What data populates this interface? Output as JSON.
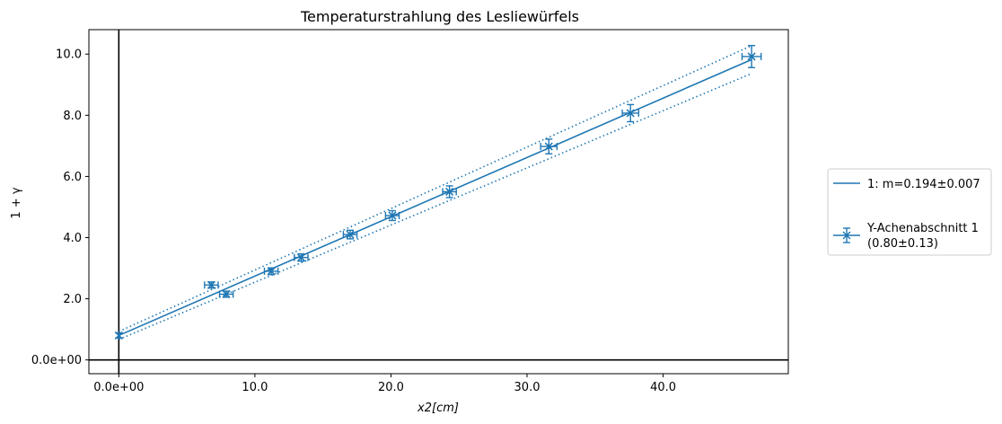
{
  "chart_data": {
    "type": "scatter",
    "title": "Temperaturstrahlung des Lesliewürfels",
    "xlabel_italic": "x2[cm]",
    "ylabel": "1 + γ",
    "xlim": [
      -2.2,
      49.2
    ],
    "ylim": [
      -0.45,
      10.8
    ],
    "xticks": [
      0,
      10,
      20,
      30,
      40
    ],
    "xtick_labels": [
      "0.0e+00",
      "10.0",
      "20.0",
      "30.0",
      "40.0"
    ],
    "yticks": [
      0,
      2,
      4,
      6,
      8,
      10
    ],
    "ytick_labels": [
      "0.0e+00",
      "2.0",
      "4.0",
      "6.0",
      "8.0",
      "10.0"
    ],
    "reference_lines": {
      "x": 0,
      "y": 0
    },
    "legend_placement": "outside-right",
    "color": "#1f77b4",
    "fit": {
      "label": "1: m=0.194±0.007",
      "slope": 0.194,
      "slope_err": 0.007,
      "intercept": 0.8,
      "intercept_err": 0.13,
      "x_range": [
        0,
        46.5
      ]
    },
    "series": [
      {
        "name_line1": "Y-Achenabschnitt 1",
        "name_line2": "(0.80±0.13)",
        "marker": "x",
        "points": [
          {
            "x": 0.0,
            "y": 0.8,
            "xerr": 0.0,
            "yerr": 0.08
          },
          {
            "x": 6.8,
            "y": 2.45,
            "xerr": 0.5,
            "yerr": 0.1
          },
          {
            "x": 7.9,
            "y": 2.15,
            "xerr": 0.5,
            "yerr": 0.1
          },
          {
            "x": 11.2,
            "y": 2.9,
            "xerr": 0.5,
            "yerr": 0.11
          },
          {
            "x": 13.4,
            "y": 3.35,
            "xerr": 0.5,
            "yerr": 0.12
          },
          {
            "x": 17.0,
            "y": 4.1,
            "xerr": 0.5,
            "yerr": 0.14
          },
          {
            "x": 20.1,
            "y": 4.72,
            "xerr": 0.5,
            "yerr": 0.16
          },
          {
            "x": 24.3,
            "y": 5.5,
            "xerr": 0.5,
            "yerr": 0.19
          },
          {
            "x": 31.6,
            "y": 6.98,
            "xerr": 0.6,
            "yerr": 0.24
          },
          {
            "x": 37.6,
            "y": 8.07,
            "xerr": 0.6,
            "yerr": 0.28
          },
          {
            "x": 46.5,
            "y": 9.92,
            "xerr": 0.7,
            "yerr": 0.36
          }
        ]
      }
    ]
  }
}
